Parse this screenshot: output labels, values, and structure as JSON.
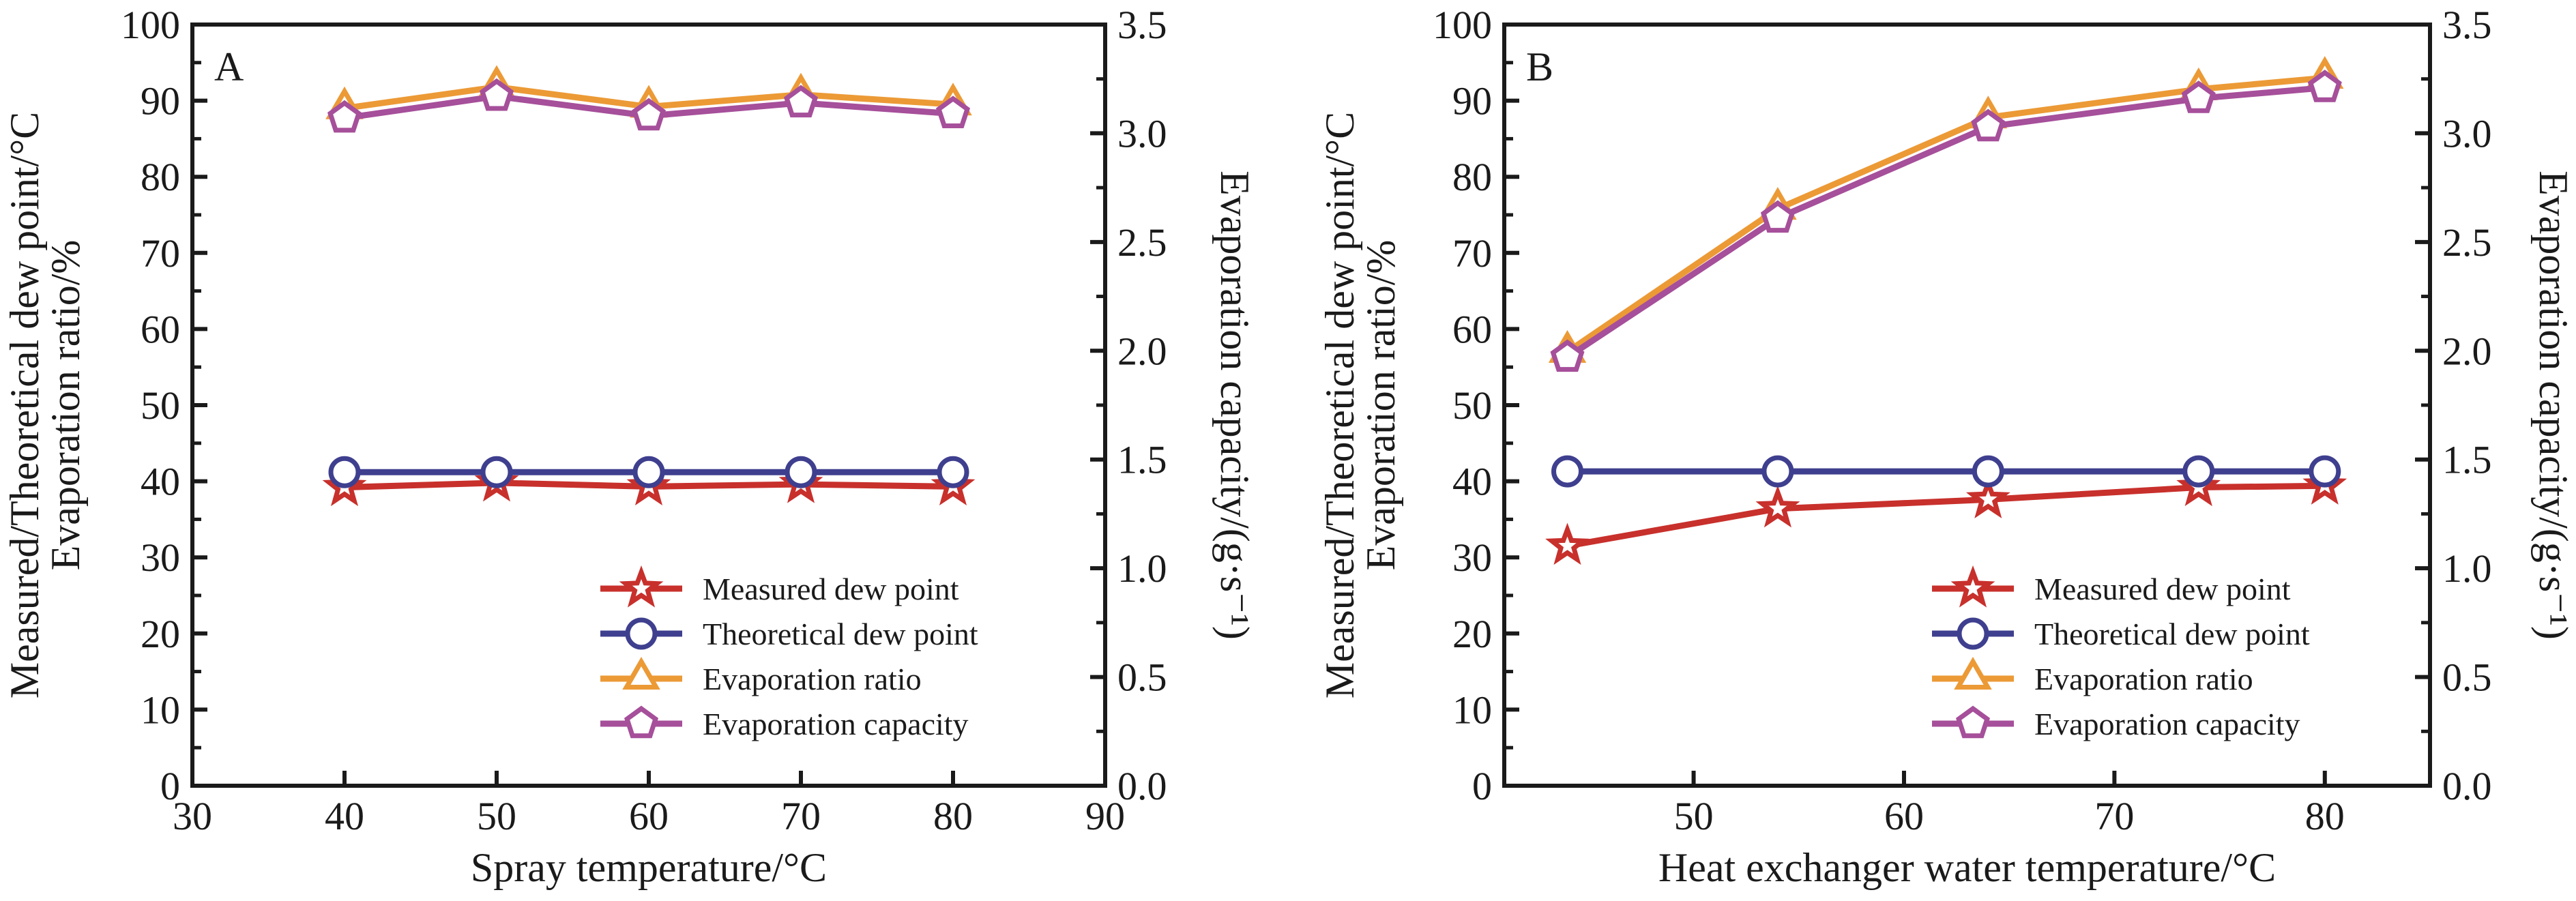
{
  "colors": {
    "measured": "#c8302c",
    "theoretical": "#3f3f8f",
    "ratio": "#ec9a36",
    "capacity": "#a64f9a",
    "axis": "#1a1a1a"
  },
  "chart_data": [
    {
      "type": "line",
      "panel_label": "A",
      "xlabel": "Spray temperature/°C",
      "ylabel_lines": [
        "Measured/Theoretical dew point/°C",
        "Evaporation ratio/%"
      ],
      "y2label": "Evaporation capacity/(g·s⁻¹)",
      "xlim": [
        30,
        90
      ],
      "xticks": [
        30,
        40,
        50,
        60,
        70,
        80,
        90
      ],
      "ylim": [
        0,
        100
      ],
      "yticks": [
        0,
        10,
        20,
        30,
        40,
        50,
        60,
        70,
        80,
        90,
        100
      ],
      "y2lim": [
        0,
        3.5
      ],
      "y2ticks": [
        "0.0",
        "0.5",
        "1.0",
        "1.5",
        "2.0",
        "2.5",
        "3.0",
        "3.5"
      ],
      "x": [
        40,
        50,
        60,
        70,
        80
      ],
      "series": [
        {
          "name": "Measured dew point",
          "axis": "left",
          "marker": "star",
          "color_key": "measured",
          "values": [
            39.2,
            39.8,
            39.3,
            39.6,
            39.3
          ]
        },
        {
          "name": "Theoretical dew point",
          "axis": "left",
          "marker": "circle",
          "color_key": "theoretical",
          "values": [
            41.2,
            41.2,
            41.2,
            41.2,
            41.2
          ]
        },
        {
          "name": "Evaporation ratio",
          "axis": "left",
          "marker": "triangle",
          "color_key": "ratio",
          "values": [
            89.0,
            91.8,
            89.2,
            90.8,
            89.5
          ]
        },
        {
          "name": "Evaporation capacity",
          "axis": "right",
          "marker": "pentagon",
          "color_key": "capacity",
          "values": [
            3.07,
            3.17,
            3.08,
            3.14,
            3.09
          ]
        }
      ],
      "legend_position": "bottom-right",
      "grid": false
    },
    {
      "type": "line",
      "panel_label": "B",
      "xlabel": "Heat exchanger water temperature/°C",
      "ylabel_lines": [
        "Measured/Theoretical dew point/°C",
        "Evaporation ratio/%"
      ],
      "y2label": "Evaporation capacity/(g·s⁻¹)",
      "xlim": [
        41,
        85
      ],
      "xticks": [
        50,
        60,
        70,
        80
      ],
      "ylim": [
        0,
        100
      ],
      "yticks": [
        0,
        10,
        20,
        30,
        40,
        50,
        60,
        70,
        80,
        90,
        100
      ],
      "y2lim": [
        0,
        3.5
      ],
      "y2ticks": [
        "0.0",
        "0.5",
        "1.0",
        "1.5",
        "2.0",
        "2.5",
        "3.0",
        "3.5"
      ],
      "x": [
        44,
        54,
        64,
        74,
        80
      ],
      "series": [
        {
          "name": "Measured dew point",
          "axis": "left",
          "marker": "star",
          "color_key": "measured",
          "values": [
            31.5,
            36.4,
            37.6,
            39.2,
            39.4
          ]
        },
        {
          "name": "Theoretical dew point",
          "axis": "left",
          "marker": "circle",
          "color_key": "theoretical",
          "values": [
            41.3,
            41.3,
            41.3,
            41.3,
            41.3
          ]
        },
        {
          "name": "Evaporation ratio",
          "axis": "left",
          "marker": "triangle",
          "color_key": "ratio",
          "values": [
            57.0,
            75.8,
            87.8,
            91.5,
            93.0
          ]
        },
        {
          "name": "Evaporation capacity",
          "axis": "right",
          "marker": "pentagon",
          "color_key": "capacity",
          "values": [
            1.97,
            2.61,
            3.03,
            3.16,
            3.21
          ]
        }
      ],
      "legend_position": "bottom-right",
      "grid": false
    }
  ]
}
